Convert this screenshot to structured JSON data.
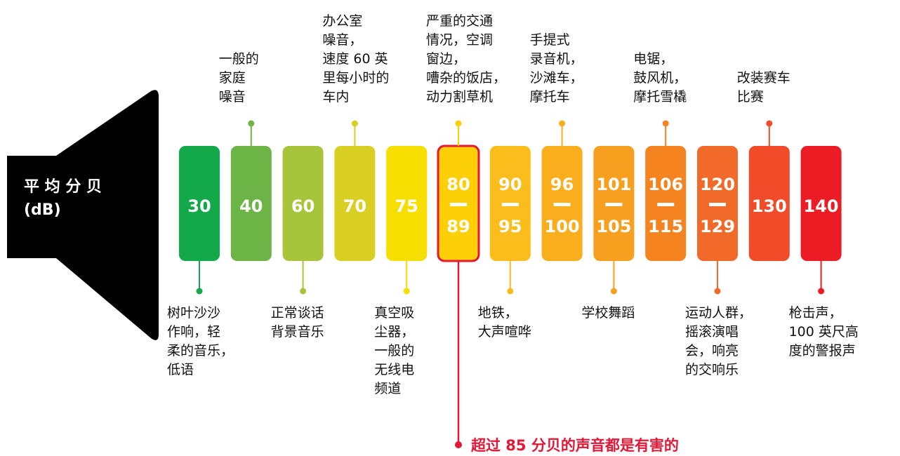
{
  "title": {
    "line1": "平 均 分 贝",
    "line2": "(dB)"
  },
  "levels": [
    {
      "low": 30,
      "color": "#13a84a",
      "position": "below",
      "description": [
        "树叶沙沙",
        "作响，轻",
        "柔的音乐，",
        "低语"
      ]
    },
    {
      "low": 40,
      "color": "#6cb445",
      "position": "above",
      "description": [
        "一般的",
        "家庭",
        "噪音"
      ]
    },
    {
      "low": 60,
      "color": "#a8c43a",
      "position": "below",
      "description": [
        "正常谈话",
        "背景音乐"
      ]
    },
    {
      "low": 70,
      "color": "#d9cf22",
      "position": "above",
      "description": [
        "办公室",
        "噪音，",
        "速度 60 英",
        "里每小时的",
        "车内"
      ]
    },
    {
      "low": 75,
      "color": "#f6de00",
      "position": "below",
      "description": [
        "真空吸",
        "尘器，",
        "一般的",
        "无线电",
        "频道"
      ]
    },
    {
      "low": 80,
      "high": 89,
      "color": "#fdcf06",
      "position": "above",
      "highlight": true,
      "description": [
        "严重的交通",
        "情况，空调",
        "窗边，",
        "嘈杂的饭店，",
        "动力割草机"
      ]
    },
    {
      "low": 90,
      "high": 95,
      "color": "#fbbd1b",
      "position": "below",
      "description": [
        "地铁，",
        "大声喧哗"
      ]
    },
    {
      "low": 96,
      "high": 100,
      "color": "#f9ae1d",
      "position": "above",
      "description": [
        "手提式",
        "录音机，",
        "沙滩车，",
        "摩托车"
      ]
    },
    {
      "low": 101,
      "high": 105,
      "color": "#f7a01f",
      "position": "below",
      "description": [
        "学校舞蹈"
      ]
    },
    {
      "low": 106,
      "high": 115,
      "color": "#f58420",
      "position": "above",
      "description": [
        "电锯，",
        "鼓风机，",
        "摩托雪橇"
      ]
    },
    {
      "low": 120,
      "high": 129,
      "color": "#f26a29",
      "position": "below",
      "description": [
        "运动人群，",
        "摇滚演唱",
        "会，响亮",
        "的交响乐"
      ]
    },
    {
      "low": 130,
      "color": "#f04c2a",
      "position": "above",
      "description": [
        "改装赛车",
        "比赛"
      ]
    },
    {
      "low": 140,
      "color": "#ec1c24",
      "position": "below",
      "description": [
        "枪击声，",
        "100 英尺高",
        "度的警报声"
      ]
    }
  ],
  "note": {
    "text": "超过 85 分贝的声音都是有害的",
    "color": "#e21836"
  }
}
